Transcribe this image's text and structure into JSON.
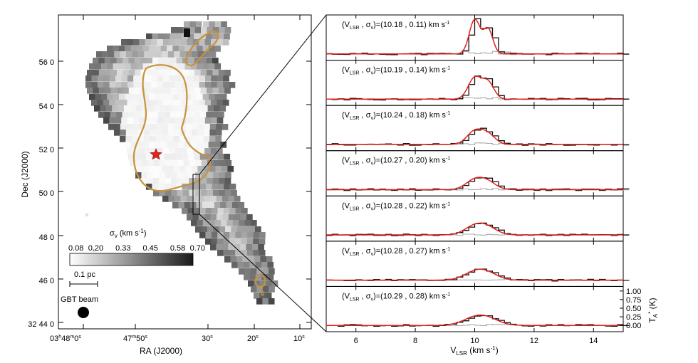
{
  "map": {
    "xlabel": "RA (J2000)",
    "ylabel": "Dec (J2000)",
    "xticks": [
      {
        "pre": "03",
        "s1": "h",
        "mid": "48",
        "s2": "m",
        "post": "0",
        "s3": "s"
      },
      {
        "pre": "47",
        "s1": "m",
        "mid": "50",
        "s2": "s",
        "post": "",
        "s3": ""
      },
      {
        "pre": "30",
        "s1": "s",
        "mid": "",
        "s2": "",
        "post": "",
        "s3": ""
      },
      {
        "pre": "20",
        "s1": "s",
        "mid": "",
        "s2": "",
        "post": "",
        "s3": ""
      },
      {
        "pre": "10",
        "s1": "s",
        "mid": "",
        "s2": "",
        "post": "",
        "s3": ""
      }
    ],
    "yticks": [
      "32 44 0",
      "46 0",
      "48 0",
      "50 0",
      "52 0",
      "54 0",
      "56 0"
    ],
    "colorbar_label": {
      "main": "σ",
      "sub": "v",
      "rest": " (km s",
      "sup": "-1",
      "end": ")"
    },
    "colorbar_ticks": [
      "0.08",
      "0.20",
      "0.33",
      "0.45",
      "0.58",
      "0.70"
    ],
    "scalebar_label": "0.1 pc",
    "beam_label": "GBT beam",
    "contour_color": "#c8923a",
    "marker_color": "#e8241e"
  },
  "chart_data": {
    "type": "line",
    "xlabel": {
      "main": "V",
      "sub": "LSR",
      "rest": " (km s",
      "sup": "-1",
      "end": ")"
    },
    "ylabel": {
      "main": "T",
      "sub": "A",
      "sup": "*",
      "rest": " (K)"
    },
    "xlim": [
      5.0,
      15.0
    ],
    "xticks": [
      "6",
      "8",
      "10",
      "12",
      "14"
    ],
    "yticks": [
      "0.00",
      "0.25",
      "0.50",
      "0.75",
      "1.00"
    ],
    "ylim": [
      -0.1,
      1.05
    ],
    "series_colors": {
      "observed": "#111111",
      "fit": "#e0201c",
      "residual": "#aaaaaa"
    },
    "panels": [
      {
        "vlsr": "10.18",
        "sigma": "0.11",
        "peak1": 1.0,
        "peak2": 0.72
      },
      {
        "vlsr": "10.19",
        "sigma": "0.14",
        "peak1": 0.62,
        "peak2": 0.48
      },
      {
        "vlsr": "10.24",
        "sigma": "0.18",
        "peak1": 0.38,
        "peak2": 0.28
      },
      {
        "vlsr": "10.27",
        "sigma": "0.20",
        "peak1": 0.28,
        "peak2": 0.2
      },
      {
        "vlsr": "10.28",
        "sigma": "0.22",
        "peak1": 0.25,
        "peak2": 0.18
      },
      {
        "vlsr": "10.28",
        "sigma": "0.27",
        "peak1": 0.22,
        "peak2": 0.16
      },
      {
        "vlsr": "10.29",
        "sigma": "0.28",
        "peak1": 0.2,
        "peak2": 0.15
      }
    ],
    "panel_label": {
      "open": "(V",
      "vsub": "LSR",
      "mid": " , σ",
      "ssub": "v",
      "eq": ")=(",
      "sep": " , ",
      "close": ") km s",
      "sup": "-1"
    }
  }
}
